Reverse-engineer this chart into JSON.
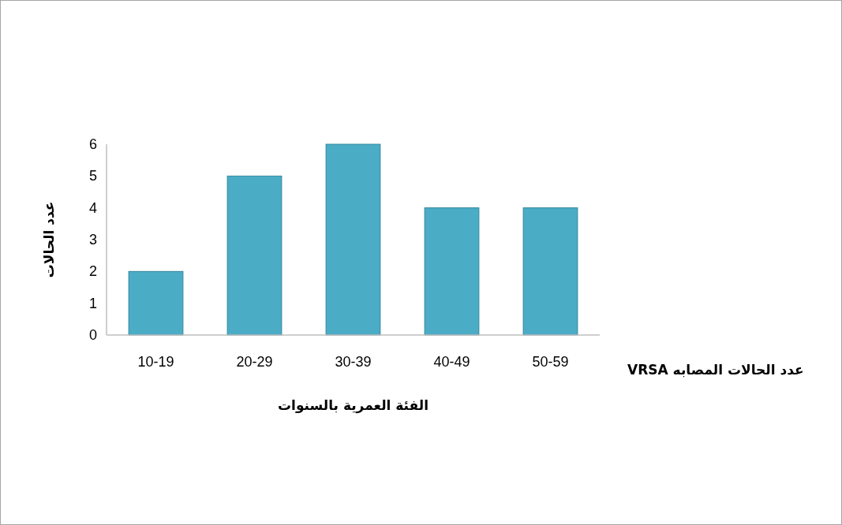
{
  "chart_data": {
    "type": "bar",
    "xlabel": "الفئة العمرية بالسنوات",
    "ylabel": "عدد الحالات",
    "categories": [
      "10-19",
      "20-29",
      "30-39",
      "40-49",
      "50-59"
    ],
    "series": [
      {
        "name": "عدد الحالات المصابه VRSA",
        "color": "#4bacc6",
        "values": [
          2,
          5,
          6,
          4,
          4
        ]
      }
    ],
    "ylim": [
      0,
      6
    ],
    "yticks": [
      0,
      1,
      2,
      3,
      4,
      5,
      6
    ],
    "grid": false
  }
}
